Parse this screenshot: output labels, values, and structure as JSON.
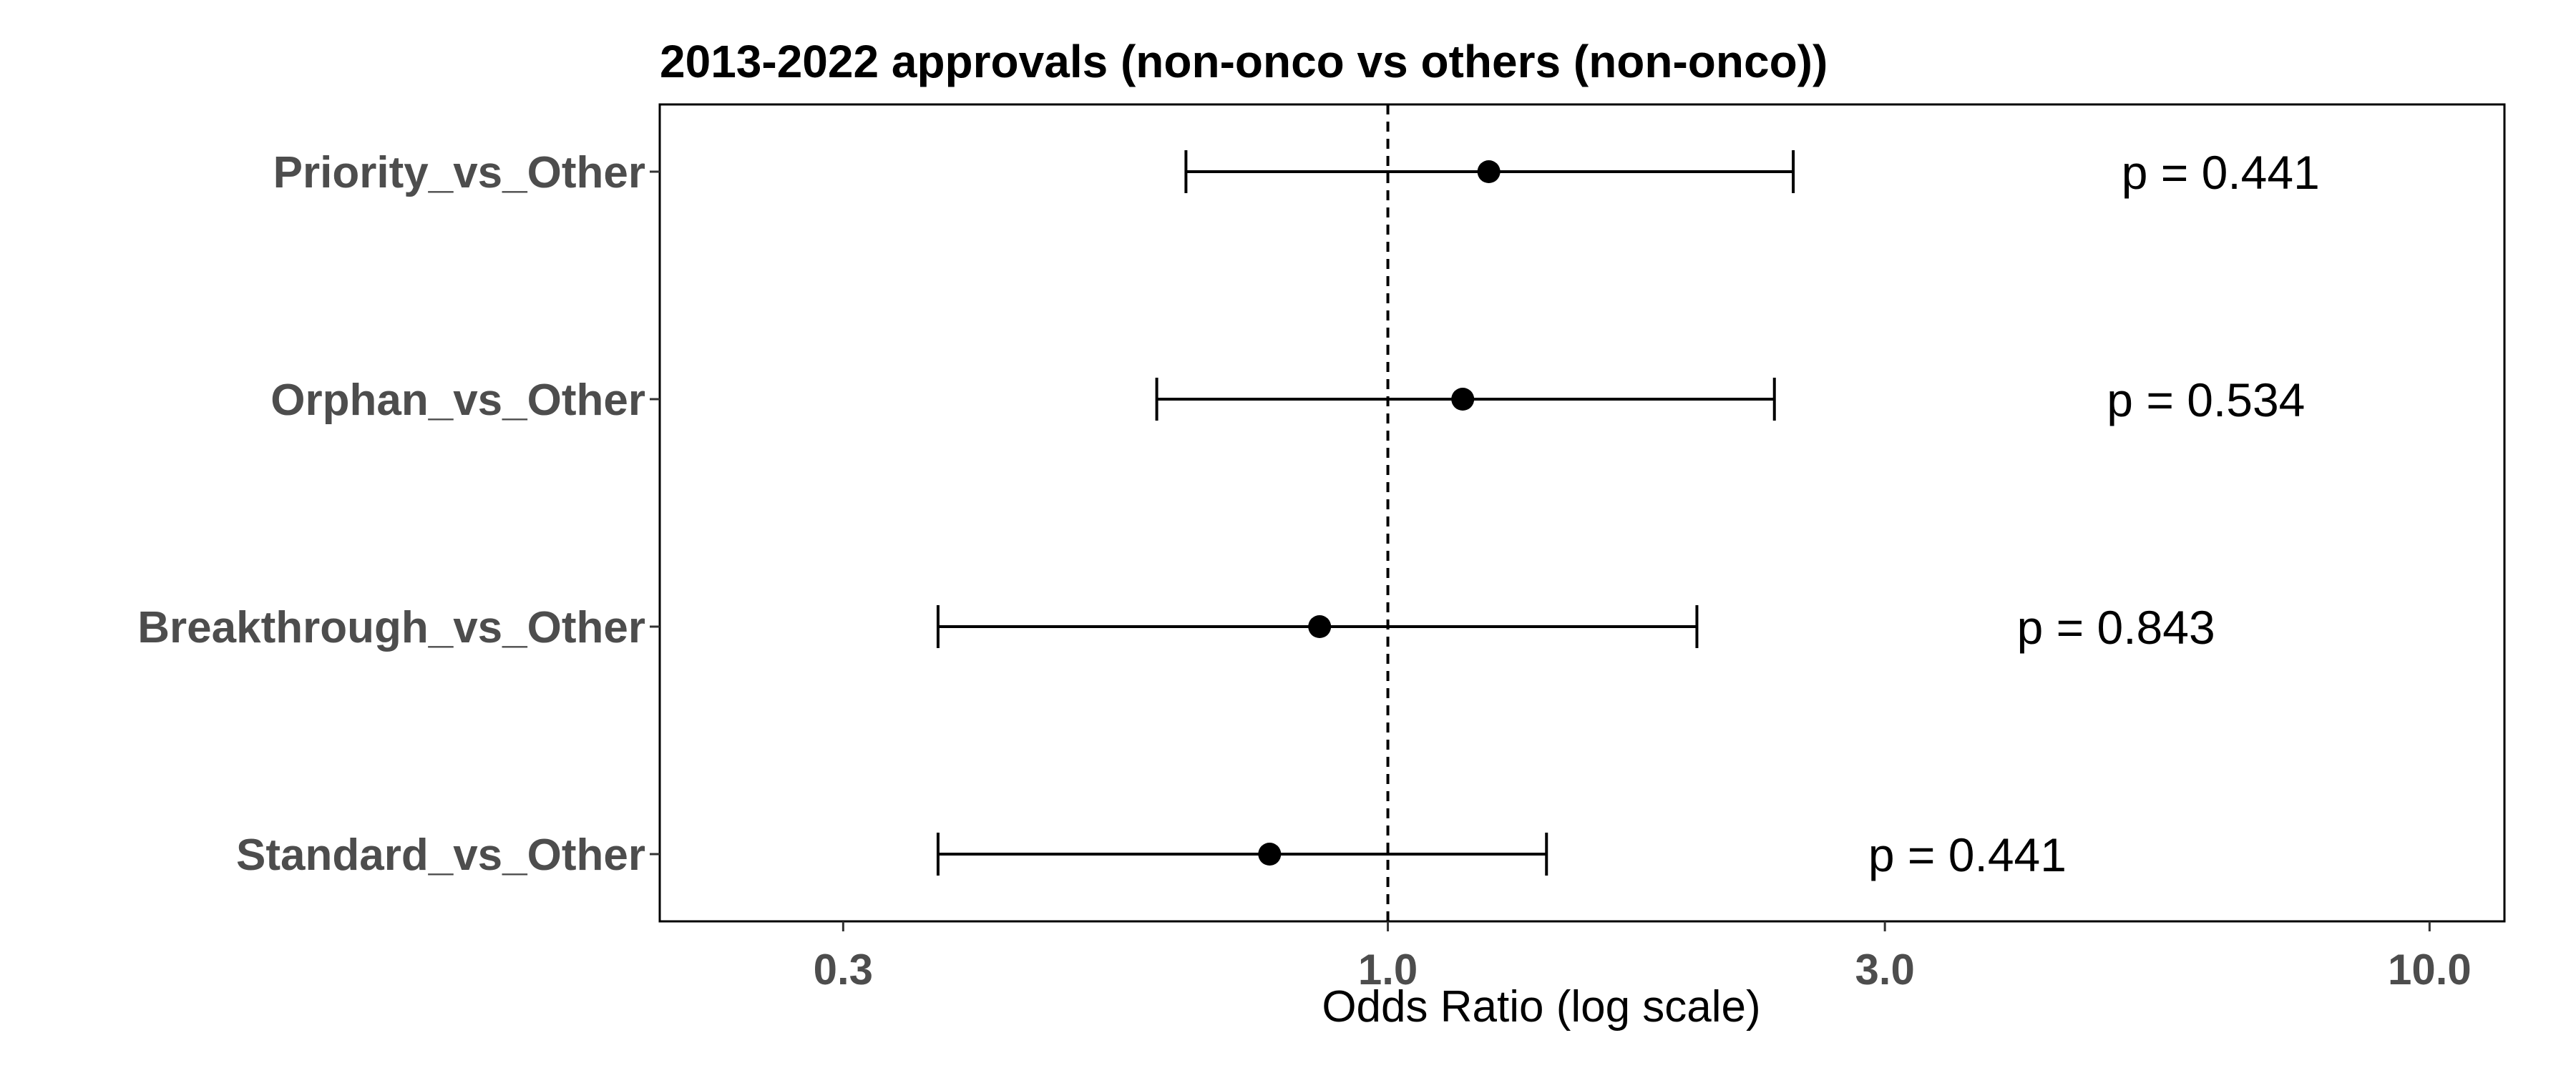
{
  "chart_data": {
    "type": "forest",
    "title": "2013-2022 approvals (non-onco vs others (non-onco))",
    "xlabel": "Odds Ratio (log scale)",
    "x_scale": "log",
    "xlim": [
      0.2,
      11.8
    ],
    "x_ticks": [
      0.3,
      1.0,
      3.0,
      10.0
    ],
    "x_tick_labels": [
      "0.3",
      "1.0",
      "3.0",
      "10.0"
    ],
    "reference_line": 1.0,
    "grid": false,
    "rows": [
      {
        "label": "Priority_vs_Other",
        "or": 1.25,
        "ci_low": 0.64,
        "ci_high": 2.45,
        "p_text": "p = 0.441",
        "p_pos": 6.3
      },
      {
        "label": "Orphan_vs_Other",
        "or": 1.18,
        "ci_low": 0.6,
        "ci_high": 2.35,
        "p_text": "p = 0.534",
        "p_pos": 6.1
      },
      {
        "label": "Breakthrough_vs_Other",
        "or": 0.86,
        "ci_low": 0.37,
        "ci_high": 1.98,
        "p_text": "p = 0.843",
        "p_pos": 5.0
      },
      {
        "label": "Standard_vs_Other",
        "or": 0.77,
        "ci_low": 0.37,
        "ci_high": 1.42,
        "p_text": "p = 0.441",
        "p_pos": 3.6
      }
    ],
    "colors": {
      "point": "#000000",
      "errorbar": "#000000",
      "refline": "#000000",
      "axis_text": "#4d4d4d",
      "frame": "#000000"
    }
  }
}
